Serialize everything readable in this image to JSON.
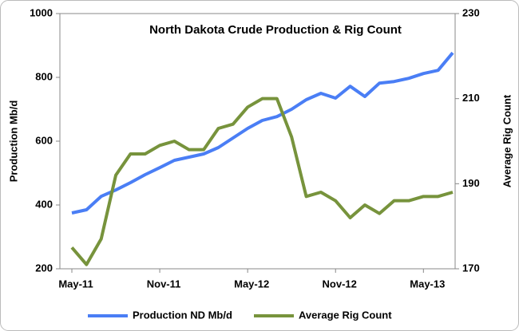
{
  "chart_data": {
    "type": "line",
    "title": "North Dakota Crude Production & Rig Count",
    "categories": [
      "May-11",
      null,
      null,
      null,
      null,
      null,
      "Nov-11",
      null,
      null,
      null,
      null,
      null,
      "May-12",
      null,
      null,
      null,
      null,
      null,
      "Nov-12",
      null,
      null,
      null,
      null,
      null,
      "May-13",
      null,
      null
    ],
    "y_label": "Production Mb/d",
    "y2_label": "Average Rig Count",
    "ylim": [
      200,
      1000
    ],
    "yticks": [
      200,
      400,
      600,
      800,
      1000
    ],
    "y2lim": [
      170,
      230
    ],
    "y2ticks": [
      170,
      190,
      210,
      230
    ],
    "grid": false,
    "series": [
      {
        "name": "Production ND Mb/d",
        "color": "#4a7ef5",
        "values": [
          375,
          385,
          427,
          447,
          470,
          495,
          517,
          540,
          550,
          560,
          580,
          610,
          640,
          665,
          677,
          700,
          730,
          750,
          735,
          772,
          740,
          782,
          787,
          797,
          812,
          822,
          877
        ]
      },
      {
        "name": "Average Rig Count",
        "color": "#77933c",
        "axis": "y2",
        "values": [
          175,
          171,
          177,
          192,
          197,
          197,
          199,
          200,
          198,
          198,
          203,
          204,
          208,
          210,
          210,
          201,
          187,
          188,
          186,
          182,
          185,
          183,
          186,
          186,
          187,
          187,
          188
        ]
      }
    ]
  }
}
